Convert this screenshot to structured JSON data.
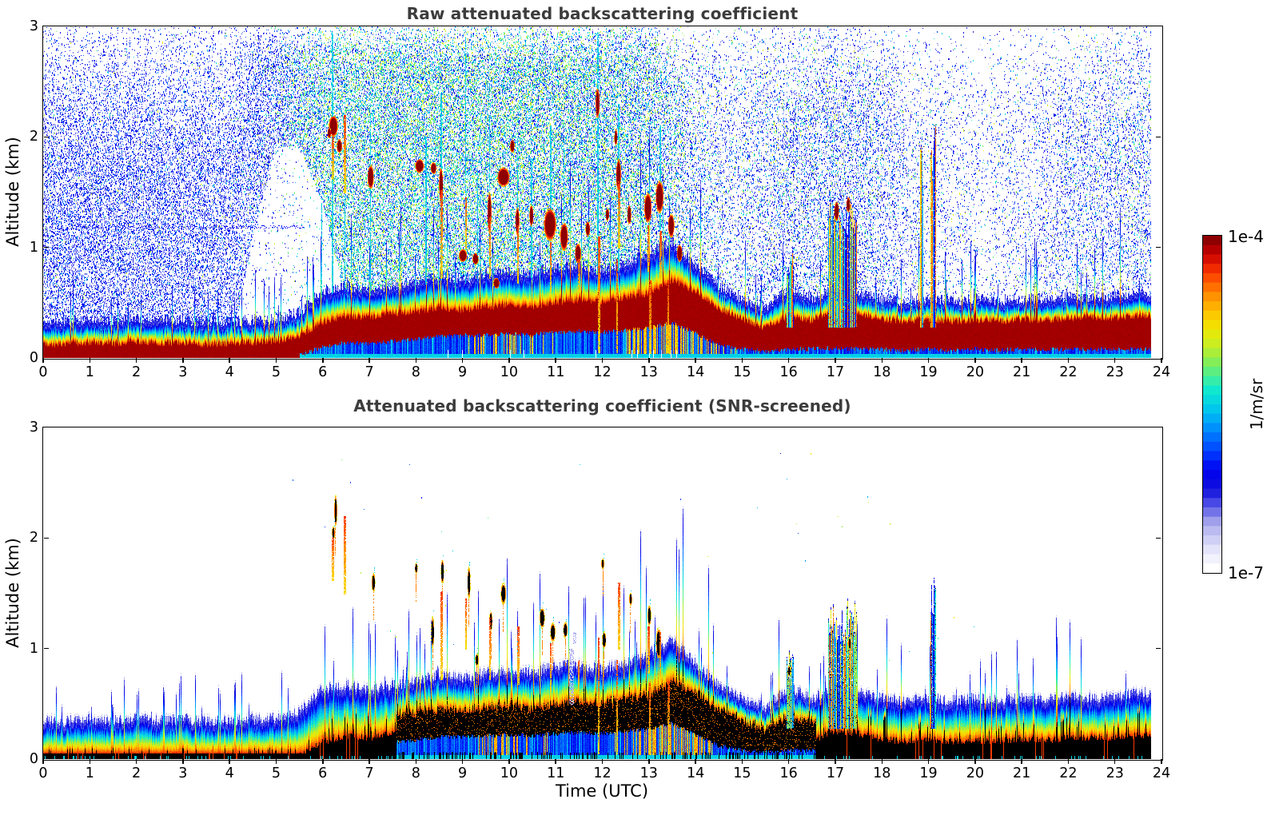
{
  "figure": {
    "background": "#ffffff",
    "title_color": "#3c3c3c",
    "axis_color": "#000000"
  },
  "chart_data": {
    "type": "heatmap",
    "axes": {
      "xlabel": "Time (UTC)",
      "ylabel": "Altitude (km)",
      "x_range": [
        0,
        24
      ],
      "y_range": [
        0,
        3
      ],
      "x_ticks": [
        0,
        1,
        2,
        3,
        4,
        5,
        6,
        7,
        8,
        9,
        10,
        11,
        12,
        13,
        14,
        15,
        16,
        17,
        18,
        19,
        20,
        21,
        22,
        23,
        24
      ],
      "y_ticks": [
        0,
        1,
        2,
        3
      ],
      "data_end_hour": 23.78
    },
    "colorbar": {
      "max_label": "1e-4",
      "min_label": "1e-7",
      "units": "1/m/sr",
      "scale": "log",
      "segments": 36,
      "stops": [
        [
          0.0,
          "#ffffff"
        ],
        [
          0.03,
          "#f2f2fd"
        ],
        [
          0.07,
          "#dcdcf8"
        ],
        [
          0.11,
          "#bebef2"
        ],
        [
          0.15,
          "#9898ea"
        ],
        [
          0.19,
          "#5555e8"
        ],
        [
          0.24,
          "#1111dd"
        ],
        [
          0.3,
          "#0000f0"
        ],
        [
          0.36,
          "#0044ff"
        ],
        [
          0.42,
          "#0088ff"
        ],
        [
          0.48,
          "#00c4f0"
        ],
        [
          0.54,
          "#0ce8d0"
        ],
        [
          0.58,
          "#40eea0"
        ],
        [
          0.63,
          "#86ee55"
        ],
        [
          0.68,
          "#c8ee22"
        ],
        [
          0.73,
          "#f0e800"
        ],
        [
          0.78,
          "#ffc400"
        ],
        [
          0.83,
          "#ff9000"
        ],
        [
          0.88,
          "#ff5500"
        ],
        [
          0.92,
          "#ee2200"
        ],
        [
          0.96,
          "#c40000"
        ],
        [
          1.0,
          "#8e0000"
        ]
      ]
    },
    "time_grid_h": 0.5,
    "series": {
      "red_top_km": [
        0.13,
        0.12,
        0.14,
        0.13,
        0.15,
        0.13,
        0.14,
        0.12,
        0.13,
        0.14,
        0.15,
        0.2,
        0.32,
        0.38,
        0.36,
        0.4,
        0.42,
        0.45,
        0.43,
        0.46,
        0.48,
        0.46,
        0.5,
        0.52,
        0.5,
        0.55,
        0.58,
        0.7,
        0.6,
        0.45,
        0.35,
        0.27,
        0.38,
        0.34,
        0.42,
        0.4,
        0.35,
        0.33,
        0.35,
        0.33,
        0.34,
        0.33,
        0.35,
        0.34,
        0.36,
        0.37,
        0.36,
        0.38,
        0.38
      ],
      "red_bottom_km": [
        0,
        0,
        0,
        0,
        0,
        0,
        0,
        0,
        0,
        0,
        0,
        0.02,
        0.1,
        0.14,
        0.13,
        0.15,
        0.17,
        0.2,
        0.2,
        0.21,
        0.22,
        0.21,
        0.23,
        0.24,
        0.23,
        0.25,
        0.27,
        0.32,
        0.22,
        0.12,
        0.08,
        0.06,
        0.08,
        0.08,
        0.09,
        0.08,
        0.08,
        0.07,
        0.08,
        0.07,
        0.08,
        0.07,
        0.08,
        0.07,
        0.08,
        0.08,
        0.08,
        0.08,
        0.08
      ],
      "grad_top_km": [
        0.3,
        0.29,
        0.31,
        0.3,
        0.32,
        0.3,
        0.31,
        0.29,
        0.3,
        0.31,
        0.32,
        0.38,
        0.58,
        0.62,
        0.58,
        0.62,
        0.66,
        0.72,
        0.68,
        0.73,
        0.76,
        0.73,
        0.79,
        0.81,
        0.76,
        0.82,
        0.92,
        1.02,
        0.82,
        0.62,
        0.5,
        0.42,
        0.6,
        0.5,
        0.6,
        0.56,
        0.5,
        0.48,
        0.5,
        0.48,
        0.5,
        0.48,
        0.5,
        0.5,
        0.52,
        0.51,
        0.52,
        0.55,
        0.55
      ],
      "ground_blue": [
        0,
        0,
        0,
        0,
        0,
        0,
        0,
        0,
        0,
        0,
        0,
        0,
        0,
        0,
        0,
        0.2,
        0.5,
        1,
        1,
        1,
        1,
        1,
        1,
        1,
        1,
        1,
        1,
        1,
        0.7,
        0.4,
        0.3,
        0.5,
        0.6,
        0.3,
        0,
        0,
        0,
        0,
        0,
        0,
        0,
        0,
        0,
        0,
        0,
        0,
        0,
        0,
        0
      ],
      "ground_warm": [
        0,
        0,
        0,
        0,
        0,
        0,
        0,
        0,
        0,
        0,
        0,
        0,
        0,
        0,
        0,
        0,
        0,
        0,
        0,
        0.3,
        0.5,
        0.3,
        0,
        0,
        0,
        0.3,
        0.7,
        0.8,
        0.5,
        0.2,
        0,
        0,
        0,
        0,
        0,
        0,
        0,
        0,
        0,
        0,
        0,
        0,
        0,
        0,
        0,
        0,
        0,
        0,
        0
      ],
      "noise_density": [
        0.5,
        0.5,
        0.48,
        0.5,
        0.46,
        0.48,
        0.44,
        0.46,
        0.42,
        0.45,
        0.5,
        0.55,
        0.62,
        0.65,
        0.65,
        0.68,
        0.7,
        0.72,
        0.7,
        0.7,
        0.72,
        0.7,
        0.72,
        0.7,
        0.68,
        0.66,
        0.6,
        0.45,
        0.3,
        0.25,
        0.22,
        0.28,
        0.32,
        0.32,
        0.38,
        0.34,
        0.28,
        0.18,
        0.14,
        0.12,
        0.1,
        0.1,
        0.13,
        0.18,
        0.22,
        0.24,
        0.26,
        0.28,
        0.28
      ],
      "noise_mix": [
        0.05,
        0.05,
        0.05,
        0.05,
        0.05,
        0.05,
        0.05,
        0.05,
        0.08,
        0.1,
        0.2,
        0.5,
        0.7,
        0.75,
        0.75,
        0.75,
        0.75,
        0.75,
        0.75,
        0.75,
        0.75,
        0.72,
        0.7,
        0.7,
        0.68,
        0.65,
        0.6,
        0.5,
        0.4,
        0.35,
        0.3,
        0.3,
        0.3,
        0.3,
        0.3,
        0.28,
        0.25,
        0.2,
        0.2,
        0.2,
        0.2,
        0.2,
        0.2,
        0.2,
        0.22,
        0.22,
        0.25,
        0.25,
        0.25
      ],
      "noise_knee_km": [
        1.7,
        1.7,
        1.7,
        1.7,
        1.7,
        1.7,
        1.7,
        1.7,
        1.7,
        2.6,
        2.6,
        2.6,
        2.6,
        2.6,
        2.6,
        2.6,
        2.6,
        2.6,
        2.6,
        2.6,
        2.6,
        2.6,
        2.6,
        2.6,
        2.6,
        2.6,
        2.6,
        2.2,
        2.1,
        2.1,
        2.1,
        2.1,
        2.1,
        2.1,
        2.1,
        2.1,
        2.1,
        2.1,
        2.1,
        2.1,
        2.1,
        2.1,
        2.1,
        2.1,
        2.1,
        2.1,
        2.1,
        2.1,
        2.1
      ],
      "noise_lowcut_km": [
        0,
        0,
        0,
        0,
        0,
        0,
        0,
        0,
        0,
        1.1,
        1.9,
        1.9,
        1.4,
        0.5,
        0,
        0,
        0,
        0,
        0,
        0,
        0,
        0,
        0,
        0,
        0,
        0,
        0,
        0,
        0,
        0,
        0,
        0,
        0,
        0,
        0,
        0,
        0,
        0,
        0,
        0,
        0,
        0,
        0,
        0,
        0,
        0,
        0,
        0,
        0
      ]
    },
    "clouds_raw": [
      [
        6.22,
        2.1,
        0.2,
        0.2
      ],
      [
        6.35,
        1.92,
        0.12,
        0.13
      ],
      [
        6.13,
        2.04,
        0.08,
        0.1
      ],
      [
        7.02,
        1.64,
        0.14,
        0.22
      ],
      [
        8.07,
        1.74,
        0.2,
        0.13
      ],
      [
        8.37,
        1.72,
        0.13,
        0.11
      ],
      [
        8.53,
        1.57,
        0.09,
        0.32
      ],
      [
        9.0,
        0.93,
        0.18,
        0.12
      ],
      [
        9.27,
        0.9,
        0.14,
        0.11
      ],
      [
        9.57,
        1.32,
        0.09,
        0.38
      ],
      [
        9.87,
        1.64,
        0.28,
        0.18
      ],
      [
        9.72,
        0.68,
        0.14,
        0.1
      ],
      [
        10.06,
        1.92,
        0.1,
        0.12
      ],
      [
        10.17,
        1.24,
        0.09,
        0.26
      ],
      [
        10.47,
        1.29,
        0.09,
        0.2
      ],
      [
        10.87,
        1.21,
        0.28,
        0.3
      ],
      [
        11.17,
        1.1,
        0.18,
        0.26
      ],
      [
        11.47,
        0.95,
        0.14,
        0.18
      ],
      [
        11.68,
        1.17,
        0.1,
        0.14
      ],
      [
        11.89,
        2.31,
        0.09,
        0.28
      ],
      [
        12.1,
        1.3,
        0.08,
        0.12
      ],
      [
        12.28,
        2.0,
        0.07,
        0.15
      ],
      [
        12.34,
        1.66,
        0.11,
        0.3
      ],
      [
        12.57,
        1.3,
        0.09,
        0.18
      ],
      [
        12.97,
        1.36,
        0.17,
        0.28
      ],
      [
        13.22,
        1.46,
        0.18,
        0.3
      ],
      [
        13.47,
        1.2,
        0.14,
        0.22
      ],
      [
        13.65,
        0.95,
        0.12,
        0.16
      ],
      [
        17.02,
        1.33,
        0.11,
        0.18
      ],
      [
        17.27,
        1.39,
        0.09,
        0.14
      ]
    ],
    "clouds_screened": [
      [
        6.27,
        2.25,
        0.07,
        0.3
      ],
      [
        6.22,
        2.05,
        0.06,
        0.12
      ],
      [
        7.08,
        1.6,
        0.08,
        0.18
      ],
      [
        8.0,
        1.73,
        0.06,
        0.1
      ],
      [
        8.35,
        1.15,
        0.06,
        0.3
      ],
      [
        8.56,
        1.7,
        0.07,
        0.24
      ],
      [
        9.13,
        1.6,
        0.07,
        0.3
      ],
      [
        9.3,
        0.9,
        0.08,
        0.12
      ],
      [
        9.6,
        1.25,
        0.06,
        0.2
      ],
      [
        9.87,
        1.5,
        0.12,
        0.2
      ],
      [
        10.7,
        1.28,
        0.12,
        0.2
      ],
      [
        10.93,
        1.15,
        0.12,
        0.18
      ],
      [
        11.2,
        1.17,
        0.1,
        0.15
      ],
      [
        12.0,
        1.77,
        0.05,
        0.1
      ],
      [
        12.03,
        1.08,
        0.09,
        0.16
      ],
      [
        12.6,
        1.45,
        0.06,
        0.12
      ],
      [
        13.0,
        1.3,
        0.08,
        0.2
      ],
      [
        13.2,
        1.05,
        0.12,
        0.3
      ],
      [
        16.0,
        0.8,
        0.05,
        0.1
      ],
      [
        17.3,
        1.05,
        0.07,
        0.12
      ]
    ],
    "virga": [
      [
        6.2,
        1.62,
        2.0
      ],
      [
        6.45,
        1.5,
        2.2
      ],
      [
        8.53,
        0.72,
        1.52
      ],
      [
        9.05,
        1.0,
        1.45
      ],
      [
        9.57,
        0.72,
        1.28
      ],
      [
        10.17,
        0.68,
        1.2
      ],
      [
        10.87,
        0.6,
        1.05
      ],
      [
        11.47,
        0.6,
        0.9
      ],
      [
        12.34,
        1.0,
        1.6
      ],
      [
        12.97,
        0.78,
        1.2
      ],
      [
        13.22,
        0.68,
        1.15
      ],
      [
        11.9,
        0.05,
        1.1
      ],
      [
        12.3,
        0.05,
        0.9
      ],
      [
        13.0,
        0.05,
        0.7
      ],
      [
        13.4,
        0.05,
        0.7
      ]
    ],
    "rain_columns": [
      [
        6.2,
        2.95
      ],
      [
        7.02,
        2.2
      ],
      [
        8.53,
        2.4
      ],
      [
        9.05,
        2.9
      ],
      [
        9.57,
        2.2
      ],
      [
        10.17,
        2.0
      ],
      [
        10.47,
        1.8
      ],
      [
        10.87,
        2.1
      ],
      [
        11.17,
        1.9
      ],
      [
        11.89,
        2.95
      ],
      [
        12.34,
        2.3
      ],
      [
        13.22,
        2.1
      ],
      [
        5.97,
        1.4
      ],
      [
        6.47,
        1.5
      ],
      [
        8.2,
        2.0
      ],
      [
        9.32,
        1.7
      ]
    ],
    "structures": [
      [
        15.95,
        16.1,
        0.95,
        0.95
      ],
      [
        16.85,
        17.05,
        1.38,
        1.38
      ],
      [
        17.05,
        17.2,
        1.3,
        1.3
      ],
      [
        17.2,
        17.45,
        1.42,
        1.42
      ],
      [
        18.82,
        18.88,
        2.0,
        0
      ],
      [
        19.05,
        19.15,
        2.05,
        1.65
      ]
    ],
    "purple_patches": [
      [
        11.33,
        0.5,
        1.0,
        0.08
      ],
      [
        11.4,
        1.05,
        1.15,
        0.04
      ]
    ],
    "artifact_line": {
      "alt_km": 1.19,
      "t0": 0.6,
      "t1": 5.6
    },
    "screened_specks": {
      "count": 45,
      "t_min": 5,
      "t_max": 20,
      "alt_min": 0.8,
      "alt_max": 2.8
    },
    "panels": [
      {
        "id": "raw",
        "mode": "raw",
        "title": "Raw attenuated backscattering coefficient"
      },
      {
        "id": "screened",
        "mode": "screened",
        "title": "Attenuated backscattering coefficient (SNR-screened)"
      }
    ]
  }
}
